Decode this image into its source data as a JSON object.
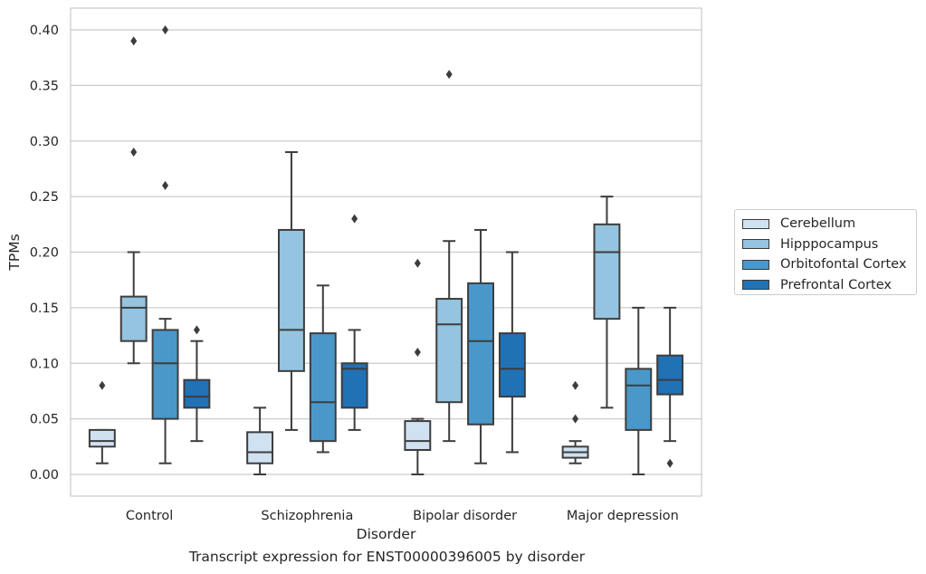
{
  "chart_data": {
    "type": "box",
    "title": "",
    "xlabel": "Disorder",
    "ylabel": "TPMs",
    "ylim": [
      -0.019,
      0.42
    ],
    "yticks": [
      "0.00",
      "0.05",
      "0.10",
      "0.15",
      "0.20",
      "0.25",
      "0.30",
      "0.35",
      "0.40"
    ],
    "grid": "horizontal",
    "legend_position": "right",
    "categories": [
      "Control",
      "Schizophrenia",
      "Bipolar disorder",
      "Major depression"
    ],
    "series": [
      {
        "name": "Cerebellum",
        "color": "#d0e1f2",
        "boxes": [
          {
            "whisker_low": 0.01,
            "q1": 0.025,
            "median": 0.03,
            "q3": 0.04,
            "whisker_high": 0.04,
            "outliers": [
              0.08
            ]
          },
          {
            "whisker_low": 0.0,
            "q1": 0.01,
            "median": 0.02,
            "q3": 0.038,
            "whisker_high": 0.06,
            "outliers": []
          },
          {
            "whisker_low": 0.0,
            "q1": 0.022,
            "median": 0.03,
            "q3": 0.048,
            "whisker_high": 0.05,
            "outliers": [
              0.11,
              0.19
            ]
          },
          {
            "whisker_low": 0.01,
            "q1": 0.015,
            "median": 0.02,
            "q3": 0.025,
            "whisker_high": 0.03,
            "outliers": [
              0.05,
              0.08
            ]
          }
        ]
      },
      {
        "name": "Hipppocampus",
        "color": "#94c4df",
        "boxes": [
          {
            "whisker_low": 0.1,
            "q1": 0.12,
            "median": 0.15,
            "q3": 0.16,
            "whisker_high": 0.2,
            "outliers": [
              0.29,
              0.39
            ]
          },
          {
            "whisker_low": 0.04,
            "q1": 0.093,
            "median": 0.13,
            "q3": 0.22,
            "whisker_high": 0.29,
            "outliers": []
          },
          {
            "whisker_low": 0.03,
            "q1": 0.065,
            "median": 0.135,
            "q3": 0.158,
            "whisker_high": 0.21,
            "outliers": [
              0.36
            ]
          },
          {
            "whisker_low": 0.06,
            "q1": 0.14,
            "median": 0.2,
            "q3": 0.225,
            "whisker_high": 0.25,
            "outliers": []
          }
        ]
      },
      {
        "name": "Orbitofontal Cortex",
        "color": "#4a98c9",
        "boxes": [
          {
            "whisker_low": 0.01,
            "q1": 0.05,
            "median": 0.1,
            "q3": 0.13,
            "whisker_high": 0.14,
            "outliers": [
              0.26,
              0.4
            ]
          },
          {
            "whisker_low": 0.02,
            "q1": 0.03,
            "median": 0.065,
            "q3": 0.127,
            "whisker_high": 0.17,
            "outliers": []
          },
          {
            "whisker_low": 0.01,
            "q1": 0.045,
            "median": 0.12,
            "q3": 0.172,
            "whisker_high": 0.22,
            "outliers": []
          },
          {
            "whisker_low": 0.0,
            "q1": 0.04,
            "median": 0.08,
            "q3": 0.095,
            "whisker_high": 0.15,
            "outliers": []
          }
        ]
      },
      {
        "name": "Prefrontal Cortex",
        "color": "#2171b5",
        "boxes": [
          {
            "whisker_low": 0.03,
            "q1": 0.06,
            "median": 0.07,
            "q3": 0.085,
            "whisker_high": 0.12,
            "outliers": [
              0.13
            ]
          },
          {
            "whisker_low": 0.04,
            "q1": 0.06,
            "median": 0.095,
            "q3": 0.1,
            "whisker_high": 0.13,
            "outliers": [
              0.23
            ]
          },
          {
            "whisker_low": 0.02,
            "q1": 0.07,
            "median": 0.095,
            "q3": 0.127,
            "whisker_high": 0.2,
            "outliers": []
          },
          {
            "whisker_low": 0.03,
            "q1": 0.072,
            "median": 0.085,
            "q3": 0.107,
            "whisker_high": 0.15,
            "outliers": [
              0.01
            ]
          }
        ]
      }
    ]
  },
  "caption": "Transcript expression for ENST00000396005 by disorder"
}
